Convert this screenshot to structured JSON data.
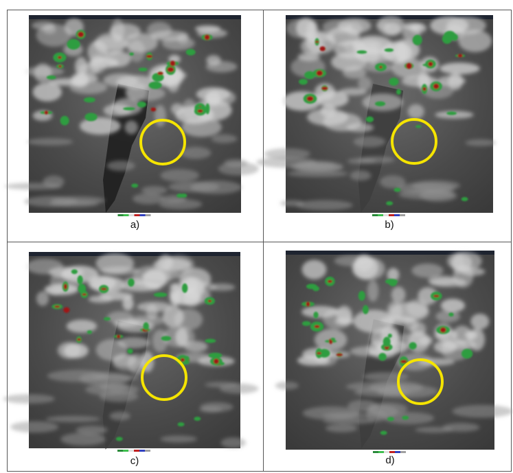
{
  "panels": [
    {
      "caption": "a)"
    },
    {
      "caption": "b)"
    },
    {
      "caption": "c)"
    },
    {
      "caption": "d)"
    }
  ]
}
